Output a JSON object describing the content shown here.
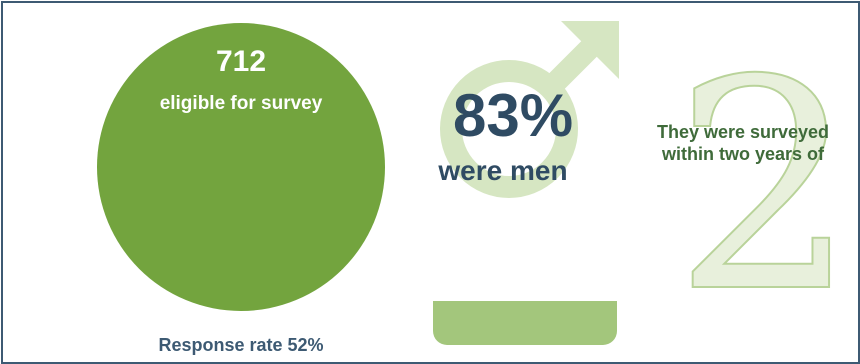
{
  "stats": {
    "eligible": {
      "number": "712",
      "label": "eligible for survey"
    },
    "response_rate": "Response rate 52%",
    "men": {
      "percent": "83%",
      "label": "were men"
    },
    "timing": {
      "big_number": "2",
      "text": "They were surveyed within two years of"
    }
  },
  "icons": {
    "male": "male-symbol-icon"
  },
  "colors": {
    "frame": "#3d5a73",
    "circle": "#73a43e",
    "bar": "#a3c67c",
    "light_green": "#d6e6c2",
    "dark_text": "#2f4b63"
  }
}
